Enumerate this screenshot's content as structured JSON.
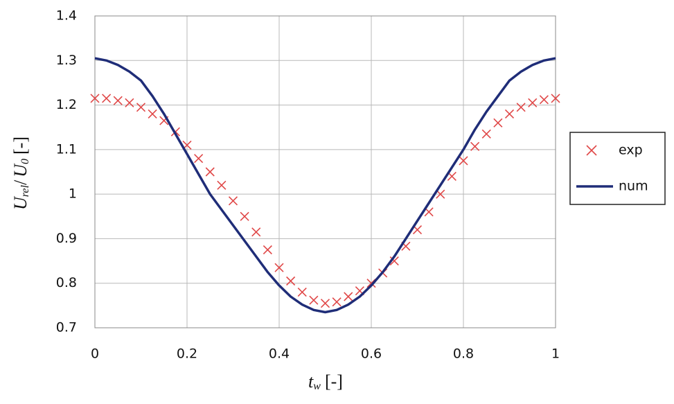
{
  "chart_data": {
    "type": "line",
    "x_label": [
      "t",
      "w",
      "[-]"
    ],
    "y_label": [
      "U",
      "rel",
      "/",
      "U",
      "0",
      "[-]"
    ],
    "x": [
      0,
      0.025,
      0.05,
      0.075,
      0.1,
      0.125,
      0.15,
      0.175,
      0.2,
      0.225,
      0.25,
      0.275,
      0.3,
      0.325,
      0.35,
      0.375,
      0.4,
      0.425,
      0.45,
      0.475,
      0.5,
      0.525,
      0.55,
      0.575,
      0.6,
      0.625,
      0.65,
      0.675,
      0.7,
      0.725,
      0.75,
      0.775,
      0.8,
      0.825,
      0.85,
      0.875,
      0.9,
      0.925,
      0.95,
      0.975,
      1
    ],
    "series": [
      {
        "name": "exp",
        "color": "#e04848",
        "marker": "x",
        "values": [
          1.215,
          1.215,
          1.21,
          1.205,
          1.195,
          1.18,
          1.165,
          1.14,
          1.11,
          1.08,
          1.05,
          1.02,
          0.985,
          0.95,
          0.915,
          0.875,
          0.835,
          0.805,
          0.78,
          0.762,
          0.755,
          0.758,
          0.77,
          0.783,
          0.8,
          0.823,
          0.85,
          0.883,
          0.92,
          0.96,
          1.0,
          1.04,
          1.075,
          1.107,
          1.135,
          1.16,
          1.18,
          1.195,
          1.205,
          1.212,
          1.215
        ]
      },
      {
        "name": "num",
        "color": "#1f2d78",
        "marker": "line",
        "values": [
          1.305,
          1.3,
          1.29,
          1.275,
          1.255,
          1.22,
          1.18,
          1.135,
          1.09,
          1.045,
          1.0,
          0.965,
          0.93,
          0.895,
          0.86,
          0.825,
          0.795,
          0.77,
          0.752,
          0.74,
          0.735,
          0.74,
          0.752,
          0.77,
          0.795,
          0.825,
          0.86,
          0.9,
          0.94,
          0.98,
          1.02,
          1.06,
          1.1,
          1.145,
          1.185,
          1.22,
          1.255,
          1.275,
          1.29,
          1.3,
          1.305
        ]
      }
    ],
    "xlim": [
      0,
      1
    ],
    "xticks": [
      0,
      0.2,
      0.4,
      0.6,
      0.8,
      1
    ],
    "ylim": [
      0.7,
      1.4
    ],
    "yticks": [
      0.7,
      0.8,
      0.9,
      1,
      1.1,
      1.2,
      1.3,
      1.4
    ],
    "grid": true,
    "legend": "right"
  }
}
